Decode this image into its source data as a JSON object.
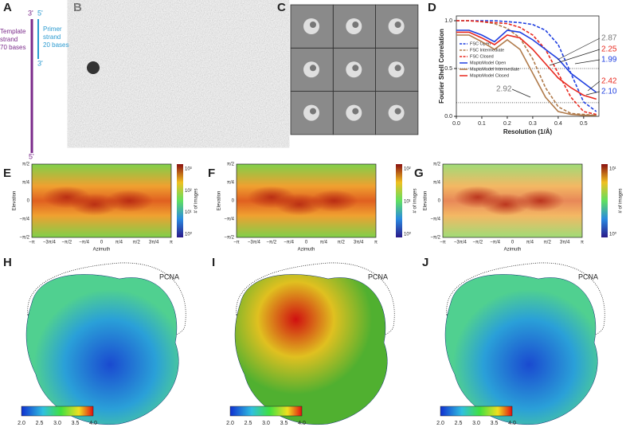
{
  "panels": {
    "A": {
      "label": "A",
      "top_template": "3'",
      "top_primer": "5'",
      "template_text": [
        "Template",
        "strand",
        "70 bases"
      ],
      "primer_text": [
        "Primer",
        "strand",
        "20 bases"
      ],
      "primer_end": "3'",
      "template_end": "5'"
    },
    "B": {
      "label": "B"
    },
    "C": {
      "label": "C"
    },
    "heat": {
      "x_ticks": [
        "−π",
        "−3π/4",
        "−π/2",
        "−π/4",
        "0",
        "π/4",
        "π/2",
        "3π/4",
        "π"
      ],
      "y_ticks": [
        "π/2",
        "π/4",
        "0",
        "−π/4",
        "−π/2"
      ],
      "x_label": "Azimuth",
      "y_label": "Elevation",
      "colorbar_label": "# of images"
    },
    "E": {
      "label": "E",
      "colorbar_ticks": [
        "10³",
        "10²",
        "10¹",
        "10⁰"
      ]
    },
    "F": {
      "label": "F",
      "colorbar_ticks": [
        "10²",
        "10¹",
        "10⁰"
      ]
    },
    "G": {
      "label": "G",
      "colorbar_ticks": [
        "10¹",
        "10⁰"
      ]
    },
    "H": {
      "label": "H",
      "annotation": "PCNA"
    },
    "I": {
      "label": "I",
      "annotation": "PCNA"
    },
    "J": {
      "label": "J",
      "annotation": "PCNA"
    },
    "map_colorbar_ticks": [
      "2.0",
      "2.5",
      "3.0",
      "3.5",
      "4.0"
    ]
  },
  "chart_data": {
    "type": "line",
    "label": "D",
    "x_label": "Resolution (1/Å)",
    "y_label": "Fourier Shell Correlation",
    "x": [
      0,
      0.05,
      0.1,
      0.15,
      0.2,
      0.25,
      0.3,
      0.35,
      0.4,
      0.45,
      0.5,
      0.55
    ],
    "xlim": [
      0,
      0.56
    ],
    "ylim": [
      0,
      1.05
    ],
    "xticks": [
      {
        "value": 0,
        "label": "0.0"
      },
      {
        "value": 0.1,
        "label": "0.1"
      },
      {
        "value": 0.2,
        "label": "0.2"
      },
      {
        "value": 0.3,
        "label": "0.3"
      },
      {
        "value": 0.4,
        "label": "0.4"
      },
      {
        "value": 0.5,
        "label": "0.5"
      }
    ],
    "yticks": [
      {
        "value": 0,
        "label": "0.0"
      },
      0.5,
      {
        "value": 1,
        "label": "1.0"
      }
    ],
    "thresholds": [
      0.5,
      0.143
    ],
    "series": [
      {
        "name": "FSC Open",
        "color": "#1f3fe0",
        "dash": true,
        "values": [
          1,
          1,
          1,
          1,
          0.99,
          0.98,
          0.96,
          0.9,
          0.75,
          0.45,
          0.15,
          0.05
        ]
      },
      {
        "name": "FSC Intermediate",
        "color": "#b07a4a",
        "dash": true,
        "values": [
          1,
          1,
          0.99,
          0.97,
          0.92,
          0.82,
          0.6,
          0.3,
          0.1,
          0.03,
          0.02,
          0.01
        ]
      },
      {
        "name": "FSC Closed",
        "color": "#e8281e",
        "dash": true,
        "values": [
          1,
          1,
          0.99,
          0.98,
          0.97,
          0.93,
          0.85,
          0.7,
          0.45,
          0.2,
          0.05,
          0.02
        ]
      },
      {
        "name": "MaptoModel Open",
        "color": "#1f3fe0",
        "dash": false,
        "values": [
          0.9,
          0.9,
          0.85,
          0.78,
          0.9,
          0.88,
          0.8,
          0.7,
          0.6,
          0.45,
          0.35,
          0.25
        ]
      },
      {
        "name": "MaptoModel Intermediate",
        "color": "#b07a4a",
        "dash": false,
        "values": [
          0.85,
          0.85,
          0.78,
          0.7,
          0.8,
          0.7,
          0.45,
          0.2,
          0.05,
          0.02,
          0.01,
          0.01
        ]
      },
      {
        "name": "MaptoModel Closed",
        "color": "#e8281e",
        "dash": false,
        "values": [
          0.88,
          0.88,
          0.82,
          0.75,
          0.85,
          0.82,
          0.7,
          0.55,
          0.4,
          0.3,
          0.22,
          0.18
        ]
      }
    ],
    "annotations": [
      {
        "text": "2.87",
        "color": "#777"
      },
      {
        "text": "2.25",
        "color": "#e8281e"
      },
      {
        "text": "1.99",
        "color": "#1f3fe0"
      },
      {
        "text": "2.42",
        "color": "#e8281e"
      },
      {
        "text": "2.10",
        "color": "#1f3fe0"
      },
      {
        "text": "2.92",
        "color": "#777"
      }
    ]
  }
}
